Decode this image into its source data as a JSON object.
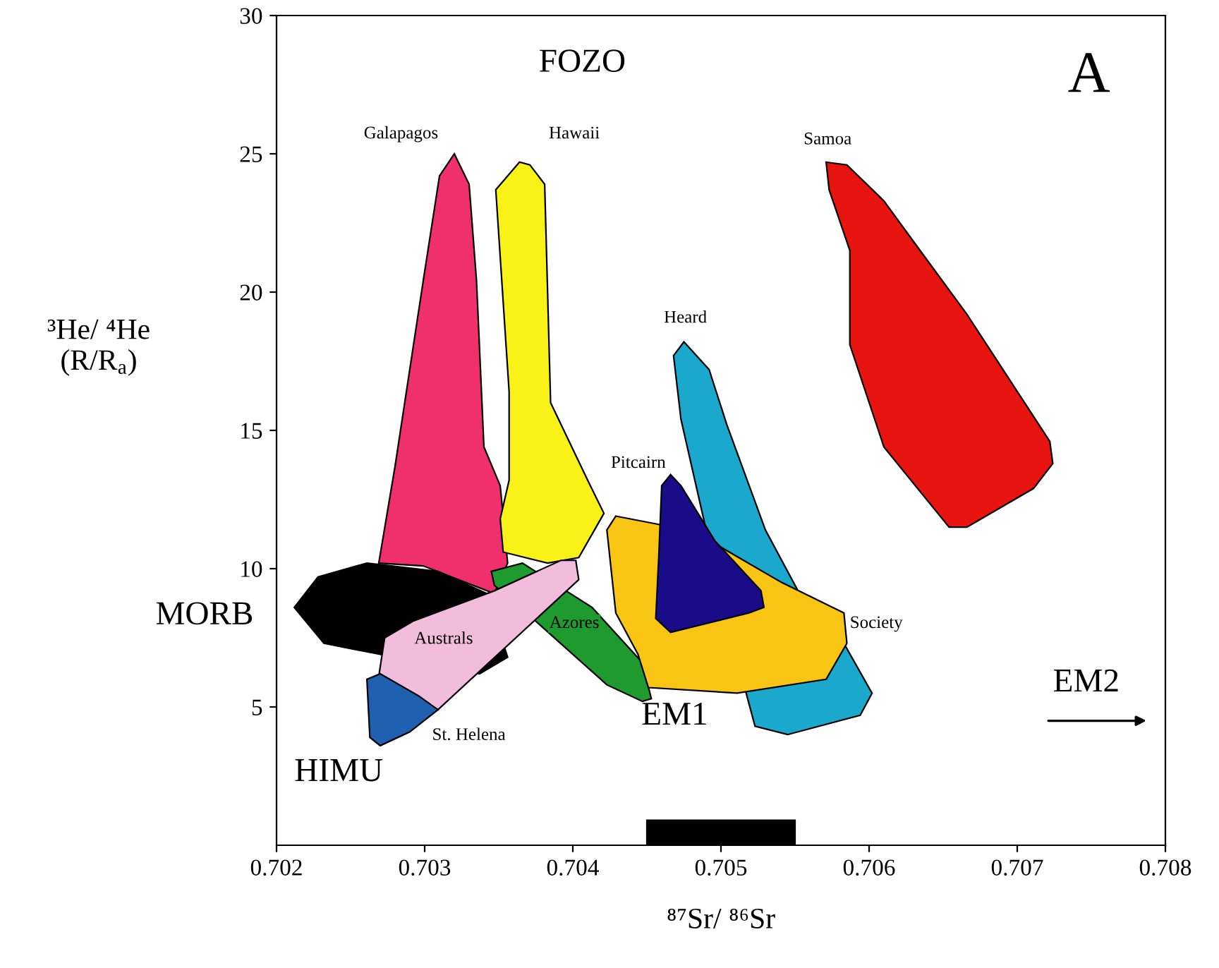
{
  "chart_data": {
    "type": "area",
    "xlabel": "⁸⁷Sr/ ⁸⁶Sr",
    "ylabel": "³He/ ⁴He\n(R/R$_{a}$)",
    "xlim": [
      0.702,
      0.708
    ],
    "xticks": [
      0.702,
      0.703,
      0.704,
      0.705,
      0.706,
      0.707,
      0.708
    ],
    "ylim": [
      0,
      30
    ],
    "yticks": [
      5,
      10,
      15,
      20,
      25,
      30
    ],
    "grid": false,
    "legend": false,
    "annotations": [
      "FOZO",
      "A",
      "MORB",
      "HIMU",
      "EM1",
      "EM2"
    ],
    "series": [
      {
        "name": "Galapagos",
        "color": "#f0306e",
        "x": [
          0.7032,
          0.7033,
          0.70335,
          0.7034,
          0.70351,
          0.70356,
          0.70347,
          0.70299,
          0.70269,
          0.7028,
          0.70299,
          0.7031
        ],
        "values": [
          25.0,
          23.9,
          20.4,
          14.4,
          13.0,
          10.2,
          9.1,
          10.1,
          10.2,
          13.7,
          20.4,
          24.2
        ]
      },
      {
        "name": "Hawaii",
        "color": "#f8f218",
        "x": [
          0.70364,
          0.70348,
          0.70357,
          0.70357,
          0.70351,
          0.70353,
          0.70383,
          0.70404,
          0.70421,
          0.7041,
          0.70385,
          0.70381,
          0.70371
        ],
        "values": [
          24.7,
          23.7,
          16.4,
          13.2,
          11.8,
          10.6,
          10.2,
          10.4,
          12.0,
          13.2,
          16.0,
          23.9,
          24.6
        ]
      },
      {
        "color": "#000000",
        "x": [
          0.70212,
          0.70228,
          0.70261,
          0.70309,
          0.70342,
          0.70356,
          0.70337,
          0.7027,
          0.70232
        ],
        "values": [
          8.6,
          9.7,
          10.2,
          9.9,
          9.1,
          6.8,
          6.2,
          6.9,
          7.3
        ]
      },
      {
        "name": "Azores",
        "color": "#1f9a2f",
        "x": [
          0.70345,
          0.70366,
          0.70413,
          0.70447,
          0.70453,
          0.70447,
          0.70423,
          0.70375,
          0.70347
        ],
        "values": [
          9.9,
          10.2,
          8.6,
          6.6,
          5.3,
          5.2,
          5.8,
          8.1,
          9.4
        ]
      },
      {
        "name": "Australs",
        "color": "#f2bcdc",
        "x": [
          0.70402,
          0.70404,
          0.70309,
          0.70269,
          0.70273,
          0.70292,
          0.70347,
          0.70392
        ],
        "values": [
          10.3,
          9.6,
          4.9,
          6.1,
          7.5,
          8.1,
          9.2,
          10.3
        ]
      },
      {
        "name": "St. Helena",
        "color": "#2060b0",
        "x": [
          0.70261,
          0.7027,
          0.70296,
          0.70309,
          0.7029,
          0.7027,
          0.70263
        ],
        "values": [
          6.0,
          6.2,
          5.4,
          4.9,
          4.1,
          3.6,
          3.9
        ]
      },
      {
        "name": "Heard",
        "color": "#1aa8cc",
        "x": [
          0.70475,
          0.70492,
          0.70504,
          0.7053,
          0.70552,
          0.70583,
          0.70602,
          0.70594,
          0.70545,
          0.70523,
          0.70517,
          0.7049,
          0.70473,
          0.70468
        ],
        "values": [
          18.2,
          17.2,
          15.2,
          11.4,
          9.2,
          7.3,
          5.5,
          4.7,
          4.0,
          4.3,
          5.5,
          11.4,
          15.4,
          17.7
        ]
      },
      {
        "name": "Society",
        "color": "#f8c515",
        "x": [
          0.70429,
          0.70458,
          0.70496,
          0.70541,
          0.70583,
          0.70585,
          0.70571,
          0.70511,
          0.70451,
          0.70444,
          0.70429,
          0.70423
        ],
        "values": [
          11.9,
          11.6,
          10.9,
          9.5,
          8.4,
          7.3,
          6.0,
          5.5,
          5.7,
          6.9,
          8.4,
          11.4
        ]
      },
      {
        "name": "Pitcairn",
        "color": "#1a0c88",
        "x": [
          0.70466,
          0.70473,
          0.70496,
          0.70527,
          0.70529,
          0.70519,
          0.70466,
          0.70456,
          0.70458,
          0.7046
        ],
        "values": [
          13.4,
          13.0,
          11.0,
          9.2,
          8.6,
          8.4,
          7.7,
          8.2,
          10.4,
          13.0
        ]
      },
      {
        "name": "Samoa",
        "color": "#e8140f",
        "x": [
          0.70571,
          0.70585,
          0.7061,
          0.70629,
          0.70666,
          0.70722,
          0.70724,
          0.70711,
          0.70666,
          0.70654,
          0.7061,
          0.70587,
          0.70587,
          0.70573
        ],
        "values": [
          24.7,
          24.6,
          23.3,
          21.9,
          19.2,
          14.6,
          13.8,
          12.9,
          11.5,
          11.5,
          14.4,
          18.1,
          21.5,
          23.7
        ]
      },
      {
        "color": "#000000",
        "x": [
          0.7045,
          0.7055,
          0.7055,
          0.7045
        ],
        "values": [
          0,
          0,
          0.9,
          0.9
        ]
      }
    ]
  }
}
